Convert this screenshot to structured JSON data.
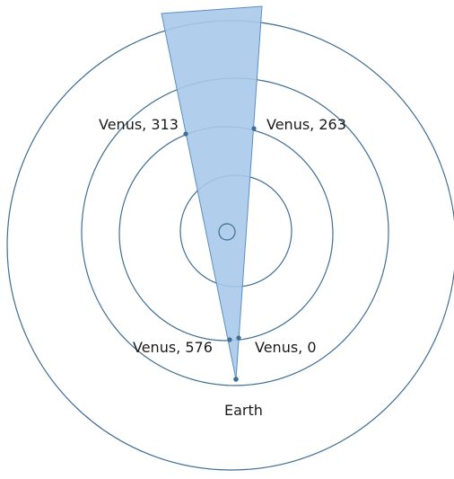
{
  "labels": {
    "venus_313": "Venus, 313",
    "venus_263": "Venus, 263",
    "venus_576": "Venus, 576",
    "venus_0": "Venus, 0",
    "earth": "Earth"
  },
  "colors": {
    "orbit_stroke": "#3f6d93",
    "wedge_fill": "#a9c9ea",
    "wedge_stroke": "#5b8fc0",
    "dot_fill": "#3f6d93",
    "text": "#1a1a1a"
  }
}
